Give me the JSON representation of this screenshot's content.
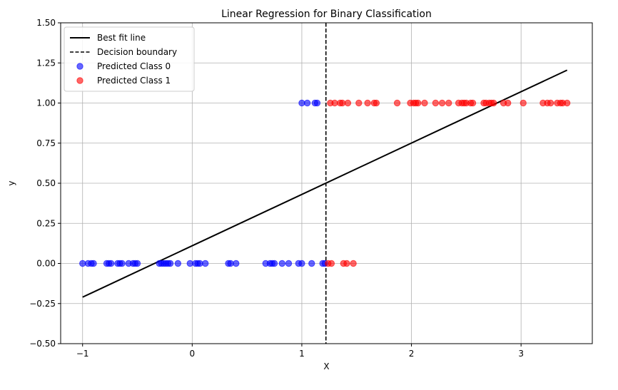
{
  "chart_data": {
    "type": "scatter",
    "title": "Linear Regression for Binary Classification",
    "xlabel": "X",
    "ylabel": "y",
    "xlim": [
      -1.2,
      3.65
    ],
    "ylim": [
      -0.5,
      1.5
    ],
    "xticks": [
      -1,
      0,
      1,
      2,
      3
    ],
    "yticks": [
      -0.5,
      -0.25,
      0.0,
      0.25,
      0.5,
      0.75,
      1.0,
      1.25,
      1.5
    ],
    "ytick_labels": [
      "−0.50",
      "−0.25",
      "0.00",
      "0.25",
      "0.50",
      "0.75",
      "1.00",
      "1.25",
      "1.50"
    ],
    "xtick_labels": [
      "−1",
      "0",
      "1",
      "2",
      "3"
    ],
    "grid": true,
    "legend_position": "top-left",
    "best_fit_line": {
      "name": "Best fit line",
      "color": "#000000",
      "x": [
        -1.0,
        3.42
      ],
      "y": [
        -0.21,
        1.205
      ]
    },
    "decision_boundary": {
      "name": "Decision boundary",
      "color": "#000000",
      "x": 1.22
    },
    "series": [
      {
        "name": "Predicted Class 0",
        "color": "#0000ff",
        "points": [
          [
            -1.0,
            0
          ],
          [
            -0.95,
            0
          ],
          [
            -0.92,
            0
          ],
          [
            -0.9,
            0
          ],
          [
            -0.78,
            0
          ],
          [
            -0.76,
            0
          ],
          [
            -0.74,
            0
          ],
          [
            -0.68,
            0
          ],
          [
            -0.66,
            0
          ],
          [
            -0.64,
            0
          ],
          [
            -0.58,
            0
          ],
          [
            -0.54,
            0
          ],
          [
            -0.52,
            0
          ],
          [
            -0.5,
            0
          ],
          [
            -0.3,
            0
          ],
          [
            -0.28,
            0
          ],
          [
            -0.26,
            0
          ],
          [
            -0.24,
            0
          ],
          [
            -0.22,
            0
          ],
          [
            -0.2,
            0
          ],
          [
            -0.13,
            0
          ],
          [
            -0.02,
            0
          ],
          [
            0.03,
            0
          ],
          [
            0.05,
            0
          ],
          [
            0.07,
            0
          ],
          [
            0.12,
            0
          ],
          [
            0.33,
            0
          ],
          [
            0.35,
            0
          ],
          [
            0.4,
            0
          ],
          [
            0.67,
            0
          ],
          [
            0.71,
            0
          ],
          [
            0.73,
            0
          ],
          [
            0.75,
            0
          ],
          [
            0.82,
            0
          ],
          [
            0.88,
            0
          ],
          [
            0.97,
            0
          ],
          [
            1.0,
            0
          ],
          [
            1.09,
            0
          ],
          [
            1.19,
            0
          ],
          [
            1.21,
            0
          ],
          [
            1.0,
            1
          ],
          [
            1.05,
            1
          ],
          [
            1.12,
            1
          ],
          [
            1.14,
            1
          ]
        ]
      },
      {
        "name": "Predicted Class 1",
        "color": "#ff0000",
        "points": [
          [
            1.24,
            0
          ],
          [
            1.27,
            0
          ],
          [
            1.38,
            0
          ],
          [
            1.41,
            0
          ],
          [
            1.47,
            0
          ],
          [
            1.26,
            1
          ],
          [
            1.3,
            1
          ],
          [
            1.35,
            1
          ],
          [
            1.37,
            1
          ],
          [
            1.42,
            1
          ],
          [
            1.52,
            1
          ],
          [
            1.6,
            1
          ],
          [
            1.66,
            1
          ],
          [
            1.68,
            1
          ],
          [
            1.87,
            1
          ],
          [
            1.99,
            1
          ],
          [
            2.02,
            1
          ],
          [
            2.04,
            1
          ],
          [
            2.06,
            1
          ],
          [
            2.12,
            1
          ],
          [
            2.22,
            1
          ],
          [
            2.28,
            1
          ],
          [
            2.34,
            1
          ],
          [
            2.43,
            1
          ],
          [
            2.46,
            1
          ],
          [
            2.48,
            1
          ],
          [
            2.5,
            1
          ],
          [
            2.54,
            1
          ],
          [
            2.56,
            1
          ],
          [
            2.66,
            1
          ],
          [
            2.68,
            1
          ],
          [
            2.71,
            1
          ],
          [
            2.73,
            1
          ],
          [
            2.75,
            1
          ],
          [
            2.84,
            1
          ],
          [
            2.88,
            1
          ],
          [
            3.02,
            1
          ],
          [
            3.2,
            1
          ],
          [
            3.24,
            1
          ],
          [
            3.27,
            1
          ],
          [
            3.33,
            1
          ],
          [
            3.36,
            1
          ],
          [
            3.38,
            1
          ],
          [
            3.42,
            1
          ]
        ]
      }
    ]
  }
}
